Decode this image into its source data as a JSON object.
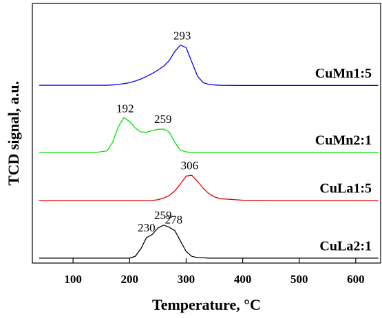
{
  "chart_data": {
    "type": "line",
    "x_label": "Temperature, °C",
    "y_label": "TCD signal, a.u.",
    "xlim": [
      28,
      644
    ],
    "ylim": [
      0,
      100
    ],
    "xticks": [
      100,
      200,
      300,
      400,
      500,
      600
    ],
    "x": [
      40,
      80,
      120,
      140,
      160,
      170,
      180,
      190,
      200,
      210,
      220,
      230,
      240,
      250,
      260,
      270,
      280,
      290,
      300,
      310,
      320,
      330,
      340,
      350,
      360,
      400,
      450,
      500,
      550,
      600,
      640
    ],
    "series": [
      {
        "name": "CuMn1:5",
        "color": "#0000ff",
        "peaks": [
          293
        ],
        "values": [
          68.5,
          68.5,
          68.5,
          68.5,
          68.5,
          68.6,
          68.8,
          69.1,
          69.5,
          70.1,
          70.9,
          71.9,
          73.0,
          74.3,
          75.8,
          78.0,
          81.5,
          84.0,
          83.0,
          77.5,
          72.0,
          69.5,
          68.8,
          68.6,
          68.5,
          68.4,
          68.4,
          68.4,
          68.4,
          68.4,
          68.4
        ]
      },
      {
        "name": "CuMn2:1",
        "color": "#00e000",
        "peaks": [
          192,
          259
        ],
        "values": [
          42.6,
          42.6,
          42.6,
          42.6,
          43.2,
          46.5,
          52.5,
          56.0,
          54.5,
          52.0,
          50.5,
          50.4,
          51.0,
          51.5,
          51.6,
          50.5,
          46.5,
          43.5,
          42.8,
          42.6,
          42.6,
          42.6,
          42.6,
          42.6,
          42.6,
          42.6,
          42.6,
          42.6,
          42.6,
          42.6,
          42.6
        ]
      },
      {
        "name": "CuLa1:5",
        "color": "#e00000",
        "peaks": [
          306
        ],
        "values": [
          24.1,
          24.1,
          24.1,
          24.1,
          24.1,
          24.1,
          24.1,
          24.1,
          24.1,
          24.1,
          24.1,
          24.1,
          24.1,
          24.4,
          25.0,
          26.0,
          27.8,
          30.5,
          33.5,
          33.8,
          31.5,
          28.8,
          26.8,
          25.5,
          24.8,
          24.2,
          24.1,
          24.1,
          24.1,
          24.1,
          24.1
        ]
      },
      {
        "name": "CuLa2:1",
        "color": "#000000",
        "peaks": [
          230,
          259,
          278
        ],
        "values": [
          1.9,
          1.9,
          1.9,
          1.9,
          1.9,
          1.9,
          1.9,
          1.9,
          1.9,
          2.6,
          5.5,
          9.8,
          11.0,
          13.5,
          14.6,
          13.8,
          12.5,
          8.5,
          4.5,
          2.6,
          2.1,
          2.0,
          1.9,
          1.9,
          1.9,
          1.9,
          1.9,
          1.9,
          1.9,
          1.9,
          1.9
        ]
      }
    ]
  }
}
